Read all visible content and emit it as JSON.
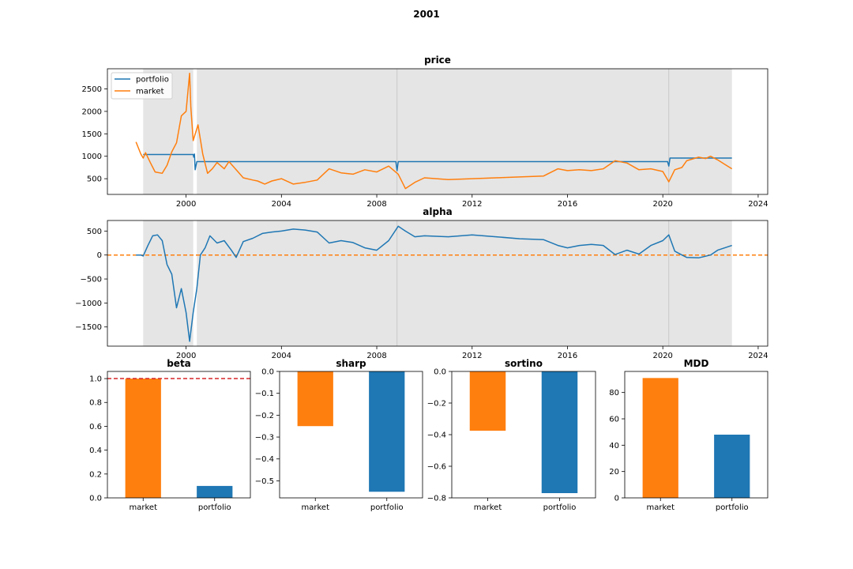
{
  "figure": {
    "title": "2001"
  },
  "chart_data": [
    {
      "id": "price",
      "type": "line",
      "title": "price",
      "xlim": [
        1996.7,
        2024.4
      ],
      "ylim": [
        150,
        2950
      ],
      "xticks": [
        2000,
        2004,
        2008,
        2012,
        2016,
        2020,
        2024
      ],
      "yticks": [
        500,
        1000,
        1500,
        2000,
        2500
      ],
      "legend": {
        "placement": "top-left",
        "entries": [
          "portfolio",
          "market"
        ]
      },
      "shaded_periods": [
        [
          1998.2,
          2000.3
        ],
        [
          2000.45,
          2022.9
        ]
      ],
      "vlines": [
        2008.85,
        2020.25
      ],
      "series": [
        {
          "name": "portfolio",
          "color": "#1f77b4",
          "x": [
            1998.2,
            2000.3,
            2000.32,
            2000.35,
            2000.38,
            2000.45,
            2008.8,
            2008.85,
            2008.9,
            2020.2,
            2020.25,
            2020.3,
            2022.9
          ],
          "y": [
            1040,
            1040,
            980,
            1050,
            700,
            880,
            880,
            680,
            880,
            880,
            780,
            960,
            960
          ]
        },
        {
          "name": "market",
          "color": "#ff7f0e",
          "x": [
            1997.9,
            1998.1,
            1998.2,
            1998.3,
            1998.5,
            1998.7,
            1999.0,
            1999.2,
            1999.4,
            1999.6,
            1999.8,
            2000.0,
            2000.15,
            2000.2,
            2000.3,
            2000.5,
            2000.7,
            2000.9,
            2001.1,
            2001.3,
            2001.6,
            2001.8,
            2002.1,
            2002.4,
            2002.8,
            2003.0,
            2003.3,
            2003.6,
            2004.0,
            2004.5,
            2005.0,
            2005.5,
            2006.0,
            2006.5,
            2007.0,
            2007.5,
            2008.0,
            2008.5,
            2008.9,
            2009.2,
            2009.6,
            2010.0,
            2011.0,
            2012.0,
            2013.0,
            2014.0,
            2015.0,
            2015.6,
            2016.0,
            2016.5,
            2017.0,
            2017.5,
            2018.0,
            2018.5,
            2019.0,
            2019.5,
            2020.0,
            2020.2,
            2020.25,
            2020.5,
            2020.8,
            2021.0,
            2021.5,
            2021.8,
            2022.0,
            2022.3,
            2022.6,
            2022.9
          ],
          "y": [
            1320,
            1050,
            960,
            1080,
            860,
            650,
            620,
            800,
            1100,
            1300,
            1900,
            2000,
            2850,
            2100,
            1350,
            1700,
            1050,
            620,
            720,
            860,
            720,
            880,
            700,
            520,
            470,
            450,
            380,
            450,
            500,
            380,
            420,
            470,
            720,
            630,
            600,
            700,
            650,
            780,
            600,
            280,
            420,
            520,
            480,
            500,
            520,
            540,
            560,
            720,
            680,
            700,
            680,
            720,
            900,
            850,
            700,
            720,
            660,
            480,
            430,
            700,
            750,
            900,
            980,
            950,
            1000,
            920,
            820,
            720
          ]
        }
      ]
    },
    {
      "id": "alpha",
      "type": "line",
      "title": "alpha",
      "xlim": [
        1996.7,
        2024.4
      ],
      "ylim": [
        -1900,
        720
      ],
      "xticks": [
        2000,
        2004,
        2008,
        2012,
        2016,
        2020,
        2024
      ],
      "yticks": [
        -1500,
        -1000,
        -500,
        0,
        500
      ],
      "shaded_periods": [
        [
          1998.2,
          2000.3
        ],
        [
          2000.45,
          2022.9
        ]
      ],
      "vlines": [
        2008.85,
        2020.25
      ],
      "hline": {
        "y": 0,
        "color": "#ff7f0e"
      },
      "series": [
        {
          "name": "",
          "color": "#1f77b4",
          "x": [
            1997.9,
            1998.1,
            1998.2,
            1998.4,
            1998.6,
            1998.8,
            1999.0,
            1999.2,
            1999.4,
            1999.6,
            1999.8,
            2000.0,
            2000.15,
            2000.3,
            2000.45,
            2000.6,
            2000.8,
            2001.0,
            2001.3,
            2001.6,
            2001.9,
            2002.1,
            2002.4,
            2002.8,
            2003.2,
            2003.6,
            2004.0,
            2004.5,
            2005.0,
            2005.5,
            2006.0,
            2006.5,
            2007.0,
            2007.5,
            2008.0,
            2008.5,
            2008.9,
            2009.2,
            2009.6,
            2010.0,
            2011.0,
            2012.0,
            2013.0,
            2014.0,
            2015.0,
            2015.6,
            2016.0,
            2016.5,
            2017.0,
            2017.5,
            2018.0,
            2018.5,
            2019.0,
            2019.5,
            2020.0,
            2020.25,
            2020.5,
            2020.8,
            2021.0,
            2021.5,
            2022.0,
            2022.3,
            2022.6,
            2022.9
          ],
          "y": [
            0,
            0,
            -20,
            200,
            400,
            420,
            300,
            -200,
            -400,
            -1100,
            -700,
            -1200,
            -1800,
            -1200,
            -700,
            0,
            150,
            400,
            250,
            300,
            100,
            -50,
            280,
            350,
            450,
            480,
            500,
            540,
            520,
            480,
            250,
            300,
            260,
            150,
            100,
            300,
            600,
            500,
            380,
            400,
            380,
            420,
            380,
            340,
            320,
            200,
            150,
            200,
            220,
            200,
            10,
            100,
            20,
            200,
            300,
            420,
            80,
            0,
            -50,
            -60,
            0,
            100,
            150,
            200
          ]
        }
      ]
    },
    {
      "id": "beta",
      "type": "bar",
      "title": "beta",
      "categories": [
        "market",
        "portfolio"
      ],
      "values": [
        1.0,
        0.1
      ],
      "colors": [
        "#ff7f0e",
        "#1f77b4"
      ],
      "ylim": [
        0,
        1.06
      ],
      "yticks": [
        0.0,
        0.2,
        0.4,
        0.6,
        0.8,
        1.0
      ],
      "hline": {
        "y": 1.0,
        "color": "#d62728"
      }
    },
    {
      "id": "sharp",
      "type": "bar",
      "title": "sharp",
      "categories": [
        "market",
        "portfolio"
      ],
      "values": [
        -0.25,
        -0.55
      ],
      "colors": [
        "#ff7f0e",
        "#1f77b4"
      ],
      "ylim": [
        -0.578,
        0
      ],
      "yticks": [
        0.0,
        -0.1,
        -0.2,
        -0.3,
        -0.4,
        -0.5
      ]
    },
    {
      "id": "sortino",
      "type": "bar",
      "title": "sortino",
      "categories": [
        "market",
        "portfolio"
      ],
      "values": [
        -0.375,
        -0.77
      ],
      "colors": [
        "#ff7f0e",
        "#1f77b4"
      ],
      "ylim": [
        -0.8,
        0
      ],
      "yticks": [
        0.0,
        -0.2,
        -0.4,
        -0.6,
        -0.8
      ]
    },
    {
      "id": "MDD",
      "type": "bar",
      "title": "MDD",
      "categories": [
        "market",
        "portfolio"
      ],
      "values": [
        91,
        48
      ],
      "colors": [
        "#ff7f0e",
        "#1f77b4"
      ],
      "ylim": [
        0,
        96
      ],
      "yticks": [
        0,
        20,
        40,
        60,
        80
      ]
    }
  ]
}
